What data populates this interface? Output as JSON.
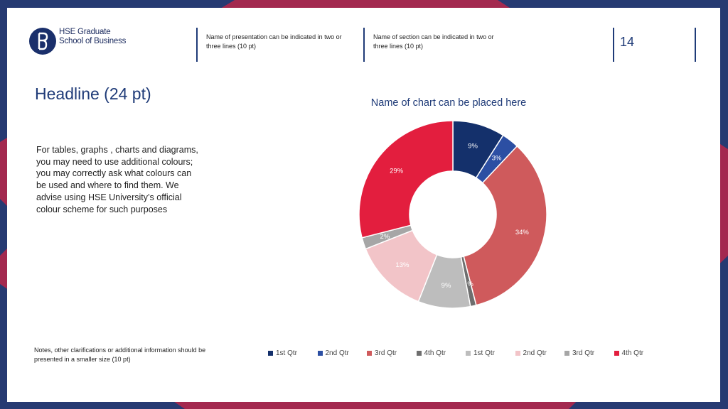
{
  "brand": {
    "logo_line1": "HSE Graduate",
    "logo_line2": "School of Business"
  },
  "header": {
    "presentation_name": "Name of presentation can be indicated in two or three lines (10 pt)",
    "section_name": "Name of section can be indicated in two or three lines (10 pt)",
    "page_number": "14"
  },
  "main": {
    "headline": "Headline (24 pt)",
    "body": "For tables, graphs , charts and diagrams, you may need to use additional colours; you may correctly ask what colours can be used and where to find them. We advise using HSE University’s official colour scheme for such purposes",
    "notes": "Notes, other clarifications or additional information should be presented in a smaller size (10 pt)"
  },
  "colors": {
    "navy": "#1a2f6b",
    "frame_red": "#a3294f",
    "frame_navy": "#263a72"
  },
  "chart_data": {
    "type": "pie",
    "donut": true,
    "title": "Name of chart can be placed here",
    "legend_position": "bottom",
    "slices": [
      {
        "label": "1st Qtr",
        "value": 9,
        "value_label": "9%",
        "color": "#14306b"
      },
      {
        "label": "2nd Qtr",
        "value": 3,
        "value_label": "3%",
        "color": "#2c4fa3"
      },
      {
        "label": "3rd Qtr",
        "value": 34,
        "value_label": "34%",
        "color": "#cf5a5c"
      },
      {
        "label": "4th Qtr",
        "value": 1,
        "value_label": "1%",
        "color": "#6e6e6e"
      },
      {
        "label": "1st Qtr",
        "value": 9,
        "value_label": "9%",
        "color": "#bdbdbd"
      },
      {
        "label": "2nd Qtr",
        "value": 13,
        "value_label": "13%",
        "color": "#f2c4c8"
      },
      {
        "label": "3rd Qtr",
        "value": 2,
        "value_label": "2%",
        "color": "#a6a6a6"
      },
      {
        "label": "4th Qtr",
        "value": 29,
        "value_label": "29%",
        "color": "#e31e3e"
      }
    ]
  }
}
